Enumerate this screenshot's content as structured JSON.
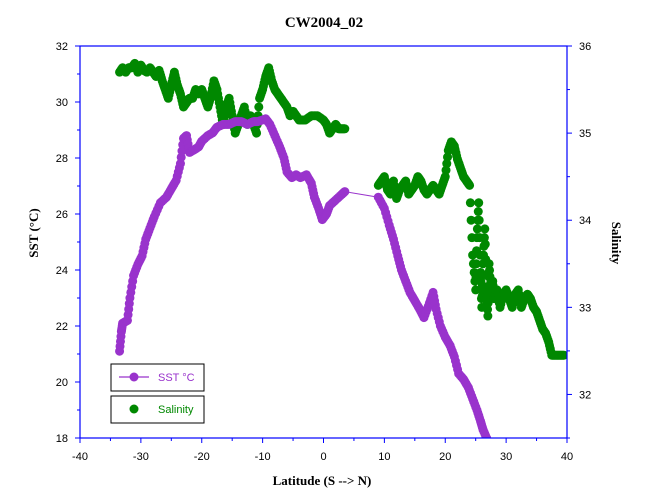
{
  "chart_data": {
    "type": "scatter",
    "title": "CW2004_02",
    "xlabel": "Latitude (S --> N)",
    "ylabel_left": "SST (°C)",
    "ylabel_right": "Salinity",
    "xlim": [
      -40,
      40
    ],
    "ylim_left": [
      18,
      32
    ],
    "ylim_right": [
      31.5,
      36
    ],
    "x_ticks": [
      "-40",
      "-30",
      "-20",
      "-10",
      "0",
      "10",
      "20",
      "30",
      "40"
    ],
    "y_left_ticks": [
      "18",
      "20",
      "22",
      "24",
      "26",
      "28",
      "30",
      "32"
    ],
    "y_right_ticks": [
      "32",
      "33",
      "34",
      "35",
      "36"
    ],
    "grid": false,
    "legend_position": "bottom-left",
    "series": [
      {
        "name": "SST °C",
        "axis": "left",
        "color": "#9933cc",
        "line": true,
        "points": [
          [
            -33.5,
            21.1
          ],
          [
            -33.2,
            21.8
          ],
          [
            -33,
            22.1
          ],
          [
            -32.2,
            22.2
          ],
          [
            -31.8,
            23.0
          ],
          [
            -31.2,
            23.8
          ],
          [
            -30.5,
            24.2
          ],
          [
            -29.8,
            24.5
          ],
          [
            -29.2,
            25.1
          ],
          [
            -28.5,
            25.5
          ],
          [
            -27.8,
            25.9
          ],
          [
            -26.8,
            26.4
          ],
          [
            -25.8,
            26.6
          ],
          [
            -25,
            26.9
          ],
          [
            -24.2,
            27.2
          ],
          [
            -23.5,
            27.8
          ],
          [
            -23,
            28.7
          ],
          [
            -22.5,
            28.8
          ],
          [
            -22,
            28.2
          ],
          [
            -21.2,
            28.3
          ],
          [
            -20.5,
            28.4
          ],
          [
            -20,
            28.6
          ],
          [
            -19,
            28.8
          ],
          [
            -18.2,
            28.9
          ],
          [
            -17.5,
            29.1
          ],
          [
            -16.5,
            29.2
          ],
          [
            -15.5,
            29.2
          ],
          [
            -14.5,
            29.3
          ],
          [
            -13.5,
            29.3
          ],
          [
            -12.5,
            29.2
          ],
          [
            -11.5,
            29.3
          ],
          [
            -10.8,
            29.3
          ],
          [
            -9.5,
            29.4
          ],
          [
            -8.8,
            29.2
          ],
          [
            -8,
            28.8
          ],
          [
            -7.2,
            28.4
          ],
          [
            -6.5,
            28.0
          ],
          [
            -6,
            27.5
          ],
          [
            -5.2,
            27.3
          ],
          [
            -4.5,
            27.4
          ],
          [
            -3.8,
            27.3
          ],
          [
            -2.8,
            27.4
          ],
          [
            -2,
            27.1
          ],
          [
            -1.5,
            26.6
          ],
          [
            -0.8,
            26.2
          ],
          [
            -0.2,
            25.8
          ],
          [
            0.5,
            26.0
          ],
          [
            1,
            26.3
          ],
          [
            2,
            26.5
          ],
          [
            3,
            26.7
          ],
          [
            3.5,
            26.8
          ],
          [
            9,
            26.6
          ],
          [
            10,
            26.2
          ],
          [
            10.8,
            25.6
          ],
          [
            11.5,
            25.1
          ],
          [
            12.2,
            24.5
          ],
          [
            12.8,
            24.0
          ],
          [
            13.5,
            23.6
          ],
          [
            14.2,
            23.2
          ],
          [
            15,
            22.9
          ],
          [
            15.8,
            22.6
          ],
          [
            16.5,
            22.3
          ],
          [
            17.2,
            22.7
          ],
          [
            18,
            23.2
          ],
          [
            18.5,
            22.6
          ],
          [
            19.2,
            22.0
          ],
          [
            20,
            21.6
          ],
          [
            20.8,
            21.3
          ],
          [
            21.5,
            20.9
          ],
          [
            22.2,
            20.3
          ],
          [
            23,
            20.1
          ],
          [
            23.8,
            19.8
          ],
          [
            24.5,
            19.4
          ],
          [
            25.2,
            19.0
          ],
          [
            25.8,
            18.6
          ],
          [
            26.2,
            18.3
          ],
          [
            26.8,
            18.0
          ]
        ]
      },
      {
        "name": "Salinity",
        "axis": "right",
        "color": "#008800",
        "line": false,
        "points": [
          [
            -33.5,
            35.7
          ],
          [
            -33,
            35.75
          ],
          [
            -32.5,
            35.7
          ],
          [
            -32,
            35.75
          ],
          [
            -31.5,
            35.75
          ],
          [
            -31,
            35.8
          ],
          [
            -30.5,
            35.7
          ],
          [
            -30,
            35.78
          ],
          [
            -29.5,
            35.72
          ],
          [
            -29,
            35.7
          ],
          [
            -28.5,
            35.75
          ],
          [
            -28,
            35.7
          ],
          [
            -27.5,
            35.65
          ],
          [
            -27,
            35.72
          ],
          [
            -26.5,
            35.6
          ],
          [
            -26,
            35.5
          ],
          [
            -25.5,
            35.4
          ],
          [
            -25,
            35.55
          ],
          [
            -24.5,
            35.7
          ],
          [
            -24,
            35.55
          ],
          [
            -23.5,
            35.45
          ],
          [
            -23,
            35.3
          ],
          [
            -22.5,
            35.35
          ],
          [
            -22,
            35.4
          ],
          [
            -21.5,
            35.4
          ],
          [
            -21,
            35.5
          ],
          [
            -20.5,
            35.45
          ],
          [
            -20,
            35.5
          ],
          [
            -19.5,
            35.4
          ],
          [
            -19,
            35.3
          ],
          [
            -18.5,
            35.42
          ],
          [
            -18,
            35.6
          ],
          [
            -17.5,
            35.5
          ],
          [
            -17,
            35.3
          ],
          [
            -16.5,
            35.1
          ],
          [
            -16,
            35.3
          ],
          [
            -15.5,
            35.4
          ],
          [
            -15,
            35.2
          ],
          [
            -14.5,
            35.0
          ],
          [
            -14,
            35.1
          ],
          [
            -13.5,
            35.2
          ],
          [
            -13,
            35.3
          ],
          [
            -12.5,
            35.1
          ],
          [
            -12,
            35.2
          ],
          [
            -11.5,
            35.1
          ],
          [
            -11,
            35.0
          ],
          [
            -10.5,
            35.4
          ],
          [
            -10,
            35.5
          ],
          [
            -9.5,
            35.65
          ],
          [
            -9,
            35.75
          ],
          [
            -8.5,
            35.6
          ],
          [
            -8,
            35.5
          ],
          [
            -7.5,
            35.45
          ],
          [
            -7,
            35.4
          ],
          [
            -6.5,
            35.35
          ],
          [
            -6,
            35.3
          ],
          [
            -5.5,
            35.2
          ],
          [
            -5,
            35.25
          ],
          [
            -4.5,
            35.2
          ],
          [
            -4,
            35.15
          ],
          [
            -3,
            35.15
          ],
          [
            -2,
            35.2
          ],
          [
            -1,
            35.2
          ],
          [
            0,
            35.15
          ],
          [
            0.5,
            35.1
          ],
          [
            1,
            35.0
          ],
          [
            1.5,
            35.05
          ],
          [
            2,
            35.1
          ],
          [
            2.5,
            35.05
          ],
          [
            3,
            35.05
          ],
          [
            3.5,
            35.05
          ],
          [
            9,
            34.4
          ],
          [
            9.5,
            34.45
          ],
          [
            10,
            34.5
          ],
          [
            10.5,
            34.35
          ],
          [
            11,
            34.3
          ],
          [
            11.5,
            34.45
          ],
          [
            12,
            34.25
          ],
          [
            12.5,
            34.35
          ],
          [
            13,
            34.4
          ],
          [
            13.5,
            34.45
          ],
          [
            14,
            34.3
          ],
          [
            14.5,
            34.35
          ],
          [
            15,
            34.4
          ],
          [
            15.5,
            34.5
          ],
          [
            16,
            34.45
          ],
          [
            16.5,
            34.35
          ],
          [
            17,
            34.3
          ],
          [
            17.5,
            34.35
          ],
          [
            18,
            34.4
          ],
          [
            18.5,
            34.35
          ],
          [
            19,
            34.3
          ],
          [
            19.5,
            34.4
          ],
          [
            20,
            34.5
          ],
          [
            20.5,
            34.8
          ],
          [
            21,
            34.9
          ],
          [
            21.5,
            34.85
          ],
          [
            22,
            34.7
          ],
          [
            22.5,
            34.6
          ],
          [
            23,
            34.5
          ],
          [
            23.5,
            34.45
          ],
          [
            24,
            34.4
          ],
          [
            24.5,
            33.6
          ],
          [
            25,
            33.2
          ],
          [
            25.2,
            33.8
          ],
          [
            25.5,
            34.2
          ],
          [
            25.8,
            33.4
          ],
          [
            26,
            33.0
          ],
          [
            26.2,
            33.5
          ],
          [
            26.5,
            33.9
          ],
          [
            26.8,
            33.2
          ],
          [
            27,
            32.9
          ],
          [
            27.2,
            33.5
          ],
          [
            27.5,
            33.2
          ],
          [
            27.8,
            33.3
          ],
          [
            28,
            33.1
          ],
          [
            28.5,
            33.2
          ],
          [
            29,
            33.0
          ],
          [
            29.5,
            33.15
          ],
          [
            30,
            33.2
          ],
          [
            30.5,
            33.1
          ],
          [
            31,
            33.0
          ],
          [
            31.5,
            33.15
          ],
          [
            32,
            33.2
          ],
          [
            32.5,
            33.0
          ],
          [
            33,
            33.1
          ],
          [
            33.5,
            33.15
          ],
          [
            34,
            33.1
          ],
          [
            34.5,
            33.0
          ],
          [
            35,
            32.95
          ],
          [
            35.5,
            32.85
          ],
          [
            36,
            32.75
          ],
          [
            36.5,
            32.7
          ],
          [
            37,
            32.6
          ],
          [
            37.5,
            32.45
          ],
          [
            38,
            32.45
          ],
          [
            38.5,
            32.45
          ],
          [
            39,
            32.45
          ],
          [
            39.5,
            32.45
          ]
        ]
      }
    ]
  }
}
